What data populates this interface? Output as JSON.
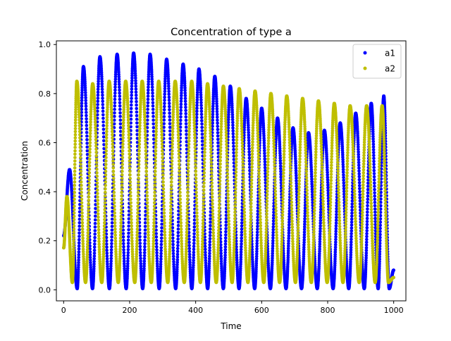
{
  "chart_data": {
    "type": "scatter",
    "title": "Concentration of type a",
    "xlabel": "Time",
    "ylabel": "Concentration",
    "xlim": [
      -22,
      1037
    ],
    "ylim": [
      -0.045,
      1.015
    ],
    "xticks": [
      0,
      200,
      400,
      600,
      800,
      1000
    ],
    "xtick_labels": [
      "0",
      "200",
      "400",
      "600",
      "800",
      "1000"
    ],
    "yticks": [
      0.0,
      0.2,
      0.4,
      0.6,
      0.8,
      1.0
    ],
    "ytick_labels": [
      "0.0",
      "0.2",
      "0.4",
      "0.6",
      "0.8",
      "1.0"
    ],
    "legend_position": "top-right",
    "grid": false,
    "series": [
      {
        "name": "a1",
        "color": "#0000ff",
        "marker": "dot",
        "peaks": [
          {
            "x": 18,
            "y": 0.49
          },
          {
            "x": 60,
            "y": 0.91
          },
          {
            "x": 110,
            "y": 0.95
          },
          {
            "x": 162,
            "y": 0.96
          },
          {
            "x": 212,
            "y": 0.965
          },
          {
            "x": 262,
            "y": 0.96
          },
          {
            "x": 312,
            "y": 0.94
          },
          {
            "x": 362,
            "y": 0.92
          },
          {
            "x": 410,
            "y": 0.9
          },
          {
            "x": 458,
            "y": 0.87
          },
          {
            "x": 505,
            "y": 0.83
          },
          {
            "x": 553,
            "y": 0.78
          },
          {
            "x": 600,
            "y": 0.74
          },
          {
            "x": 648,
            "y": 0.7
          },
          {
            "x": 695,
            "y": 0.66
          },
          {
            "x": 742,
            "y": 0.64
          },
          {
            "x": 790,
            "y": 0.65
          },
          {
            "x": 838,
            "y": 0.68
          },
          {
            "x": 885,
            "y": 0.72
          },
          {
            "x": 932,
            "y": 0.76
          },
          {
            "x": 970,
            "y": 0.79
          }
        ],
        "trough": 0.005,
        "end": {
          "x": 1000,
          "y": 0.08
        }
      },
      {
        "name": "a2",
        "color": "#bfbf00",
        "marker": "dot",
        "peaks": [
          {
            "x": 10,
            "y": 0.38
          },
          {
            "x": 40,
            "y": 0.85
          },
          {
            "x": 88,
            "y": 0.84
          },
          {
            "x": 138,
            "y": 0.85
          },
          {
            "x": 188,
            "y": 0.85
          },
          {
            "x": 238,
            "y": 0.85
          },
          {
            "x": 288,
            "y": 0.85
          },
          {
            "x": 338,
            "y": 0.85
          },
          {
            "x": 388,
            "y": 0.85
          },
          {
            "x": 436,
            "y": 0.84
          },
          {
            "x": 484,
            "y": 0.83
          },
          {
            "x": 532,
            "y": 0.82
          },
          {
            "x": 580,
            "y": 0.81
          },
          {
            "x": 628,
            "y": 0.8
          },
          {
            "x": 676,
            "y": 0.79
          },
          {
            "x": 724,
            "y": 0.78
          },
          {
            "x": 772,
            "y": 0.77
          },
          {
            "x": 820,
            "y": 0.76
          },
          {
            "x": 868,
            "y": 0.75
          },
          {
            "x": 918,
            "y": 0.75
          },
          {
            "x": 965,
            "y": 0.75
          }
        ],
        "trough": 0.03,
        "end": {
          "x": 1000,
          "y": 0.05
        }
      }
    ]
  }
}
